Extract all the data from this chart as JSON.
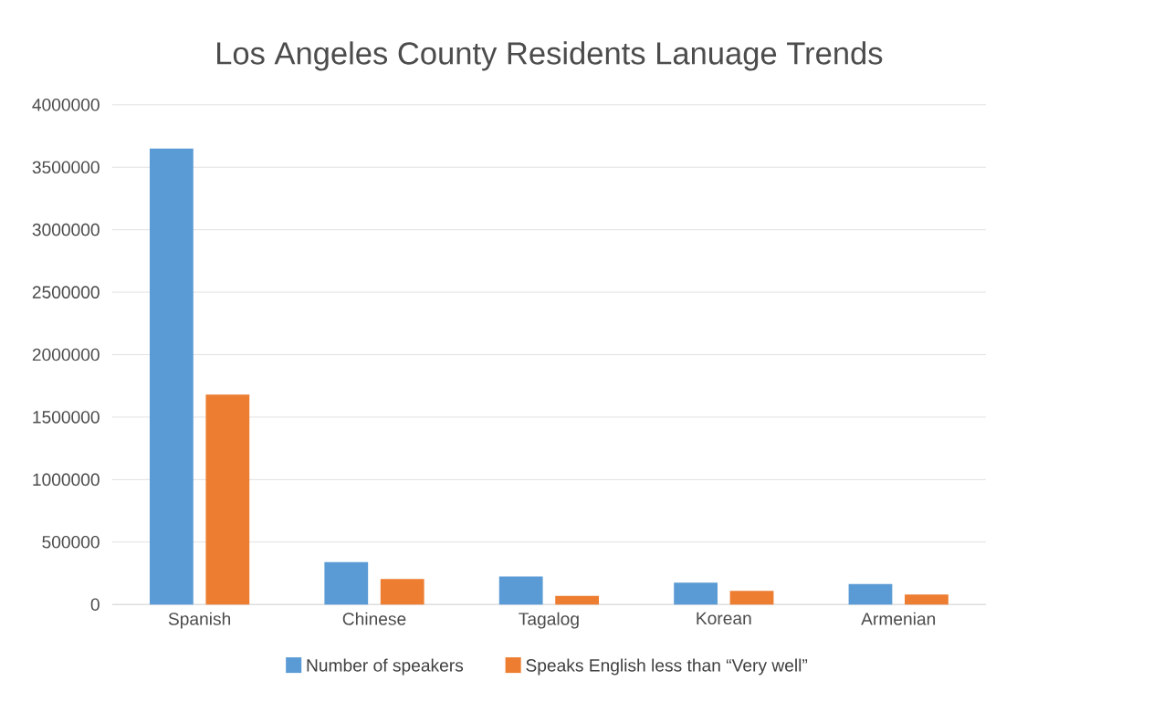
{
  "chart_data": {
    "type": "bar",
    "title": "Los Angeles County Residents Lanuage Trends",
    "categories": [
      "Spanish",
      "Chinese",
      "Tagalog",
      "Korean",
      "Armenian"
    ],
    "series": [
      {
        "name": "Number of speakers",
        "color": "#5b9bd5",
        "values": [
          3650000,
          340000,
          225000,
          175000,
          165000
        ]
      },
      {
        "name": "Speaks English less than “Very well”",
        "color": "#ed7d31",
        "values": [
          1680000,
          205000,
          70000,
          110000,
          80000
        ]
      }
    ],
    "ylim": [
      0,
      4000000
    ],
    "yticks": [
      0,
      500000,
      1000000,
      1500000,
      2000000,
      2500000,
      3000000,
      3500000,
      4000000
    ],
    "grid": "y",
    "legend": "bottom"
  }
}
